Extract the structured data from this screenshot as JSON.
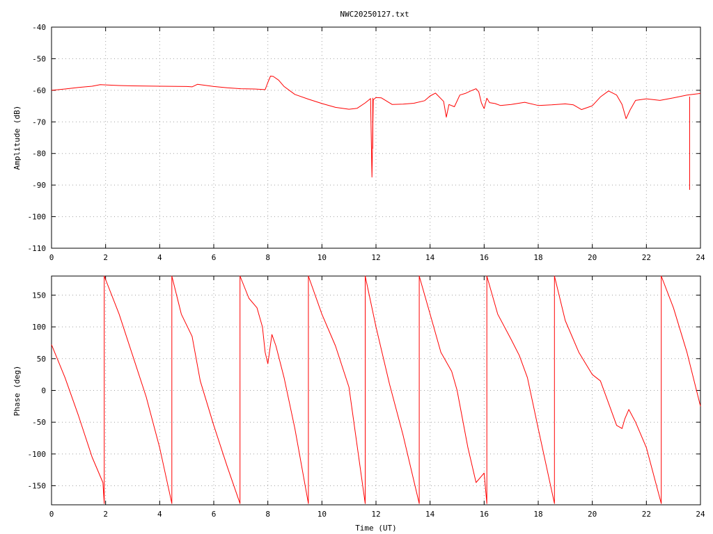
{
  "title": "NWC20250127.txt",
  "colors": {
    "series": "#ff0000",
    "axes": "#000000",
    "grid": "#a0a0a0"
  },
  "chart_data": [
    {
      "type": "line",
      "ylabel": "Amplitude (dB)",
      "xlabel": "",
      "xlim": [
        0,
        24
      ],
      "ylim": [
        -110,
        -40
      ],
      "grid": true,
      "xticks": [
        "0",
        "2",
        "4",
        "6",
        "8",
        "10",
        "12",
        "14",
        "16",
        "18",
        "20",
        "22",
        "24"
      ],
      "yticks": [
        "-110",
        "-100",
        "-90",
        "-80",
        "-70",
        "-60",
        "-50",
        "-40"
      ],
      "series": [
        {
          "x": [
            0,
            0.5,
            1,
            1.5,
            1.8,
            2,
            2.5,
            3,
            4,
            5,
            5.2,
            5.4,
            6,
            6.5,
            7,
            7.5,
            7.9,
            8,
            8.1,
            8.2,
            8.4,
            8.6,
            9,
            9.5,
            10,
            10.5,
            11,
            11.3,
            11.6,
            11.8,
            11.85,
            11.9,
            12,
            12.2,
            12.6,
            13,
            13.4,
            13.8,
            14,
            14.2,
            14.5,
            14.6,
            14.7,
            14.9,
            15.1,
            15.3,
            15.5,
            15.7,
            15.8,
            15.9,
            16,
            16.1,
            16.2,
            16.4,
            16.6,
            17,
            17.5,
            18,
            18.5,
            19,
            19.3,
            19.6,
            20,
            20.3,
            20.6,
            20.9,
            21.1,
            21.25,
            21.4,
            21.6,
            22,
            22.5,
            23,
            23.5,
            24
          ],
          "y": [
            -60,
            -59.6,
            -59.1,
            -58.7,
            -58.2,
            -58.3,
            -58.5,
            -58.6,
            -58.7,
            -58.8,
            -58.9,
            -58.1,
            -58.8,
            -59.2,
            -59.5,
            -59.6,
            -59.8,
            -57.5,
            -55.5,
            -55.6,
            -56.8,
            -58.8,
            -61.3,
            -62.8,
            -64.2,
            -65.4,
            -66,
            -65.7,
            -64,
            -62.6,
            -87.5,
            -63,
            -62.3,
            -62.4,
            -64.5,
            -64.4,
            -64.1,
            -63.3,
            -61.8,
            -60.9,
            -63.5,
            -68.5,
            -64.5,
            -65.2,
            -61.5,
            -61,
            -60.2,
            -59.5,
            -60.5,
            -64,
            -65.8,
            -62.5,
            -63.9,
            -64.2,
            -64.8,
            -64.5,
            -63.8,
            -64.8,
            -64.6,
            -64.3,
            -64.6,
            -66.1,
            -64.9,
            -62.1,
            -60.2,
            -61.5,
            -64.5,
            -69,
            -66.2,
            -63.2,
            -62.7,
            -63.2,
            -62.4,
            -61.5,
            -61
          ]
        }
      ],
      "spikes": [
        {
          "x": 11.88,
          "y_from": -62.4,
          "y_to": -78.5
        },
        {
          "x": 23.6,
          "y_from": -62,
          "y_to": -91.5
        }
      ]
    },
    {
      "type": "line",
      "ylabel": "Phase (deg)",
      "xlabel": "Time (UT)",
      "xlim": [
        0,
        24
      ],
      "ylim": [
        -180,
        180
      ],
      "grid": true,
      "xticks": [
        "0",
        "2",
        "4",
        "6",
        "8",
        "10",
        "12",
        "14",
        "16",
        "18",
        "20",
        "22",
        "24"
      ],
      "yticks": [
        "-150",
        "-100",
        "-50",
        "0",
        "50",
        "100",
        "150"
      ],
      "wraps": [
        1.95,
        4.45,
        6.97,
        9.5,
        11.6,
        13.6,
        16.1,
        18.6,
        22.55
      ],
      "series": [
        {
          "x": [
            0,
            0.5,
            1,
            1.5,
            1.9,
            1.95,
            1.95,
            2.5,
            3,
            3.5,
            4,
            4.45,
            4.45,
            4.8,
            5.2,
            5.5,
            6,
            6.5,
            6.97,
            6.97,
            7.3,
            7.6,
            7.8,
            7.9,
            8,
            8.15,
            8.3,
            8.6,
            9,
            9.5,
            9.5,
            10,
            10.5,
            11,
            11.6,
            11.6,
            12,
            12.5,
            13,
            13.6,
            13.6,
            14,
            14.4,
            14.8,
            15,
            15.4,
            15.7,
            16,
            16.1,
            16.1,
            16.5,
            17,
            17.3,
            17.6,
            18,
            18.6,
            18.6,
            19,
            19.5,
            20,
            20.3,
            20.6,
            20.9,
            21.1,
            21.2,
            21.35,
            21.6,
            22,
            22.55,
            22.55,
            23,
            23.5,
            24
          ],
          "y": [
            72,
            20,
            -40,
            -105,
            -145,
            -178,
            180,
            120,
            55,
            -10,
            -90,
            -178,
            180,
            120,
            85,
            15,
            -55,
            -120,
            -178,
            180,
            145,
            130,
            100,
            60,
            42,
            88,
            70,
            20,
            -60,
            -178,
            180,
            120,
            70,
            5,
            -178,
            180,
            100,
            10,
            -70,
            -178,
            180,
            120,
            60,
            30,
            0,
            -90,
            -145,
            -130,
            -178,
            180,
            120,
            80,
            55,
            20,
            -60,
            -178,
            180,
            110,
            60,
            25,
            15,
            -20,
            -55,
            -60,
            -45,
            -30,
            -50,
            -90,
            -178,
            180,
            130,
            60,
            -25
          ]
        }
      ]
    }
  ]
}
